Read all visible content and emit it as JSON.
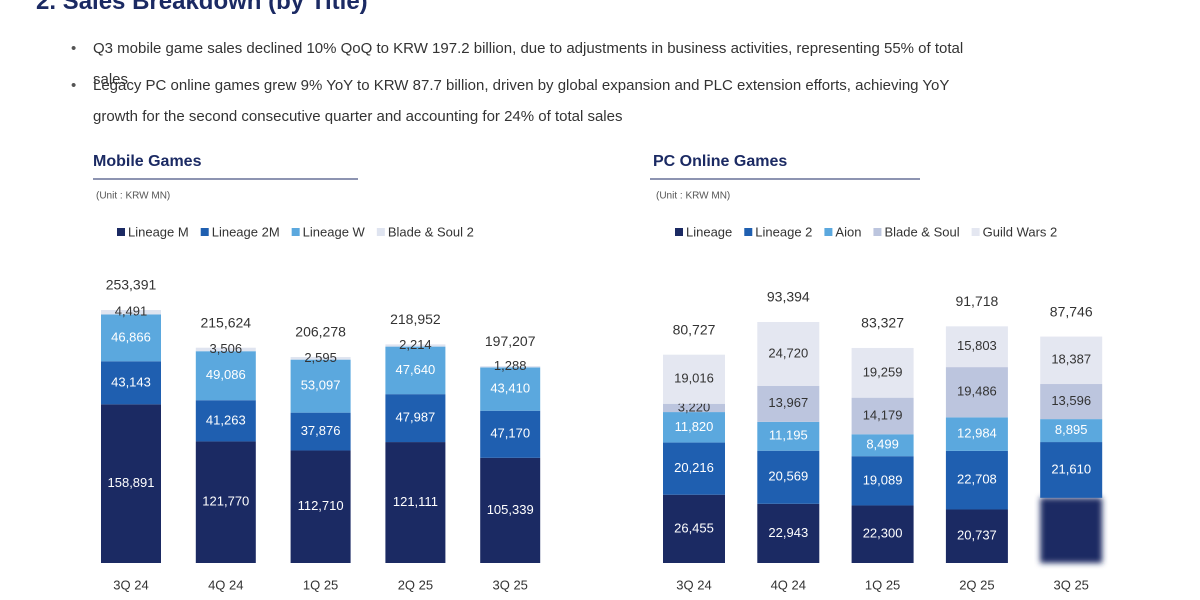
{
  "title": "2. Sales Breakdown (by Title)",
  "bullets": [
    "Q3 mobile game sales declined 10% QoQ to KRW 197.2 billion, due to adjustments in business activities, representing 55% of total sales",
    "Legacy PC online games grew 9% YoY to KRW 87.7 billion, driven by global expansion and PLC extension efforts, achieving YoY growth for the second consecutive quarter and accounting for 24% of total sales"
  ],
  "chart_data": [
    {
      "type": "stacked_bar",
      "title": "Mobile Games",
      "unit": "(Unit : KRW MN)",
      "categories": [
        "3Q 24",
        "4Q 24",
        "1Q 25",
        "2Q 25",
        "3Q 25"
      ],
      "series": [
        {
          "name": "Lineage M",
          "color": "#1b2a63",
          "values": [
            158891,
            121770,
            112710,
            121111,
            105339
          ],
          "value_labels": [
            "158,891",
            "121,770",
            "112,710",
            "121,111",
            "105,339"
          ]
        },
        {
          "name": "Lineage 2M",
          "color": "#1f5fb0",
          "values": [
            43143,
            41263,
            37876,
            47987,
            47170
          ],
          "value_labels": [
            "43,143",
            "41,263",
            "37,876",
            "47,987",
            "47,170"
          ]
        },
        {
          "name": "Lineage W",
          "color": "#5ba8de",
          "values": [
            46866,
            49086,
            53097,
            47640,
            43410
          ],
          "value_labels": [
            "46,866",
            "49,086",
            "53,097",
            "47,640",
            "43,410"
          ]
        },
        {
          "name": "Blade & Soul 2",
          "color": "#dfe4f0",
          "values": [
            4491,
            3506,
            2595,
            2214,
            1288
          ],
          "value_labels": [
            "4,491",
            "3,506",
            "2,595",
            "2,214",
            "1,288"
          ]
        }
      ],
      "totals": {
        "values": [
          253391,
          215624,
          206278,
          218952,
          197207
        ],
        "value_labels": [
          "253,391",
          "215,624",
          "206,278",
          "218,952",
          "197,207"
        ]
      }
    },
    {
      "type": "stacked_bar",
      "title": "PC Online Games",
      "unit": "(Unit : KRW MN)",
      "categories": [
        "3Q 24",
        "4Q 24",
        "1Q 25",
        "2Q 25",
        "3Q 25"
      ],
      "series": [
        {
          "name": "Lineage",
          "color": "#1b2a63",
          "values": [
            26455,
            22943,
            22300,
            20737,
            25258
          ],
          "value_labels": [
            "26,455",
            "22,943",
            "22,300",
            "20,737",
            null
          ]
        },
        {
          "name": "Lineage 2",
          "color": "#1f5fb0",
          "values": [
            20216,
            20569,
            19089,
            22708,
            21610
          ],
          "value_labels": [
            "20,216",
            "20,569",
            "19,089",
            "22,708",
            "21,610"
          ]
        },
        {
          "name": "Aion",
          "color": "#5ba8de",
          "values": [
            11820,
            11195,
            8499,
            12984,
            8895
          ],
          "value_labels": [
            "11,820",
            "11,195",
            "8,499",
            "12,984",
            "8,895"
          ]
        },
        {
          "name": "Blade & Soul",
          "color": "#bcc5de",
          "values": [
            3220,
            13967,
            14179,
            19486,
            13596
          ],
          "value_labels": [
            "3,220",
            "13,967",
            "14,179",
            "19,486",
            "13,596"
          ]
        },
        {
          "name": "Guild Wars 2",
          "color": "#e4e7f1",
          "values": [
            19016,
            24720,
            19259,
            15803,
            18387
          ],
          "value_labels": [
            "19,016",
            "24,720",
            "19,259",
            "15,803",
            "18,387"
          ]
        }
      ],
      "totals": {
        "values": [
          80727,
          93394,
          83327,
          91718,
          87746
        ],
        "value_labels": [
          "80,727",
          "93,394",
          "83,327",
          "91,718",
          "87,746"
        ]
      }
    }
  ]
}
